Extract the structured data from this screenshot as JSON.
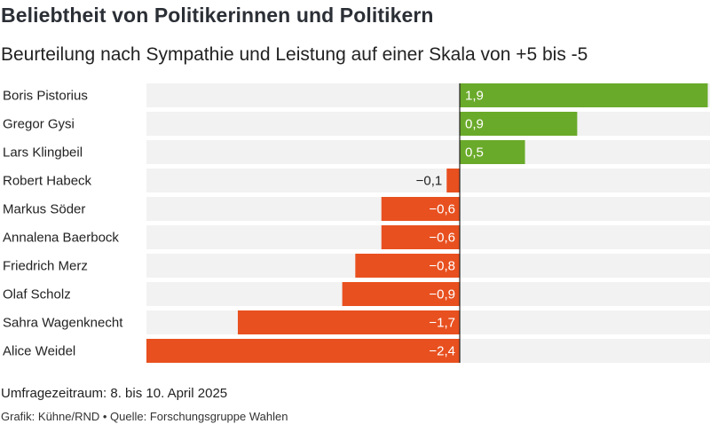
{
  "header": {
    "title": "Beliebtheit von Politikerinnen und Politikern",
    "subtitle": "Beurteilung nach Sympathie und Leistung auf einer Skala von +5 bis -5"
  },
  "footer": {
    "period": "Umfragezeitraum: 8. bis 10. April 2025",
    "credit": "Grafik: Kühne/RND • Quelle: Forschungsgruppe Wahlen"
  },
  "colors": {
    "positive": "#6aaa2a",
    "negative": "#e8501f",
    "track": "#f2f2f2",
    "zero_line": "#222222"
  },
  "chart_data": {
    "type": "bar",
    "orientation": "horizontal",
    "categories": [
      "Boris Pistorius",
      "Gregor Gysi",
      "Lars Klingbeil",
      "Robert Habeck",
      "Markus Söder",
      "Annalena Baerbock",
      "Friedrich Merz",
      "Olaf Scholz",
      "Sahra Wagenknecht",
      "Alice Weidel"
    ],
    "values": [
      1.9,
      0.9,
      0.5,
      -0.1,
      -0.6,
      -0.6,
      -0.8,
      -0.9,
      -1.7,
      -2.4
    ],
    "value_labels": [
      "1,9",
      "0,9",
      "0,5",
      "−0,1",
      "−0,6",
      "−0,6",
      "−0,8",
      "−0,9",
      "−1,7",
      "−2,4"
    ],
    "xlim": [
      -2.4,
      1.9
    ],
    "grid": false,
    "legend": "none"
  }
}
